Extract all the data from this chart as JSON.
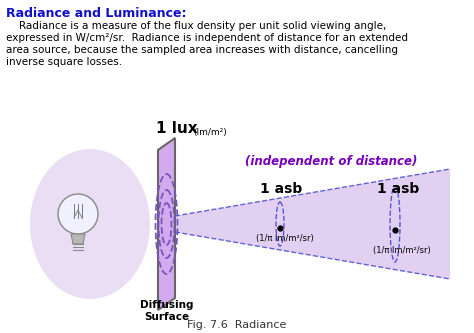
{
  "title": "Radiance and Luminance:",
  "body_line1": "    Radiance is a measure of the flux density per unit solid viewing angle,",
  "body_line2": "expressed in W/cm²/sr.  Radiance is independent of distance for an extended",
  "body_line3": "area source, because the sampled area increases with distance, cancelling",
  "body_line4": "inverse square losses.",
  "independent_label": "(independent of distance)",
  "lux_label_big": "1 lux",
  "lux_label_small": "(lm/m²)",
  "asb_label_near": "1 asb",
  "asb_sub_near": "(1/π lm/m²/sr)",
  "asb_label_far": "1 asb",
  "asb_sub_far": "(1/π lm/m²/sr)",
  "diffusing_label": "Diffusing\nSurface",
  "caption": "Fig. 7.6  Radiance",
  "bg_color": "#ffffff",
  "title_color": "#1111cc",
  "body_color": "#000000",
  "panel_color": "#d4aaee",
  "panel_edge_color": "#666666",
  "cone_color": "#ddc8f0",
  "ellipse_color": "#7755bb",
  "glow_color": "#ddc8ee",
  "independent_color": "#7700bb",
  "asb_color": "#000000",
  "lux_color": "#000000",
  "diffusing_color": "#000000",
  "caption_color": "#333333",
  "dot_color": "#000000",
  "dashed_color": "#5555cc"
}
